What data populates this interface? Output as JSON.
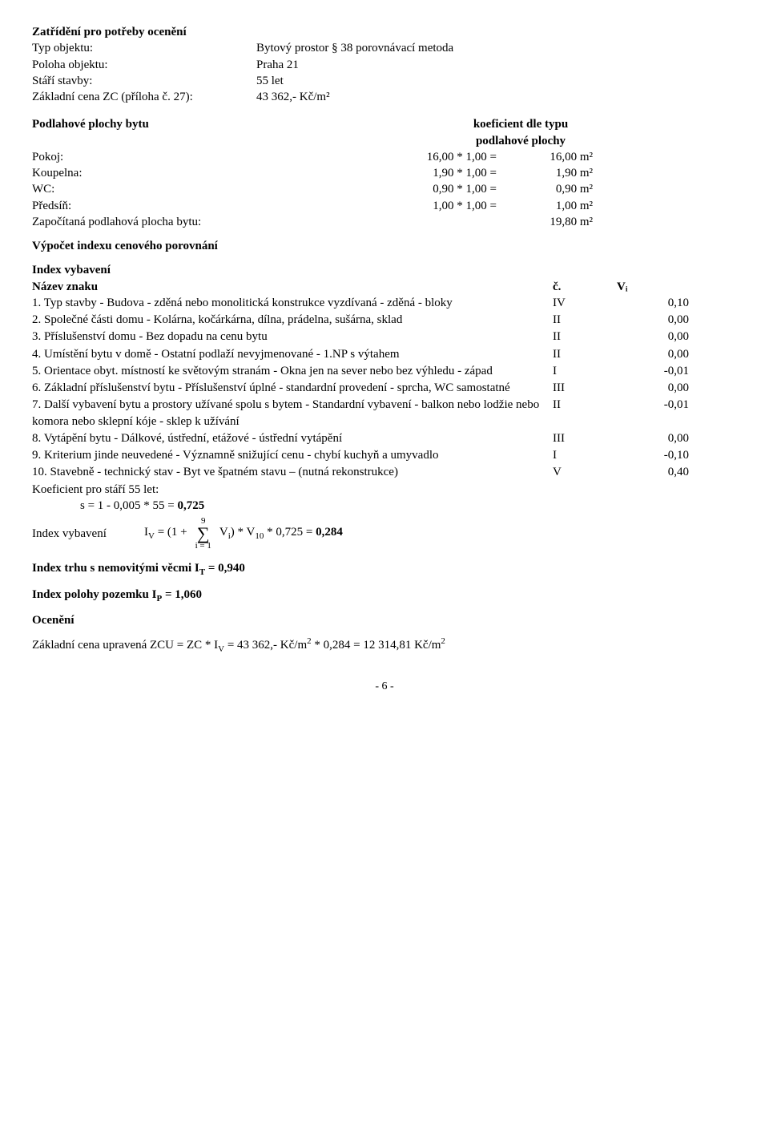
{
  "header": {
    "title": "Zatřídění pro potřeby ocenění",
    "rows": [
      {
        "label": "Typ objektu:",
        "value": "Bytový prostor § 38 porovnávací metoda"
      },
      {
        "label": "Poloha objektu:",
        "value": "Praha 21"
      },
      {
        "label": "Stáří stavby:",
        "value": "55 let"
      },
      {
        "label": "Základní cena ZC (příloha č. 27):",
        "value": "43 362,- Kč/m²"
      }
    ]
  },
  "floor": {
    "left_header": "Podlahové plochy bytu",
    "right_header": "koeficient dle typu\npodlahové plochy",
    "rows": [
      {
        "label": "Pokoj:",
        "calc": "16,00 *   1,00 =",
        "result": "16,00 m²"
      },
      {
        "label": "Koupelna:",
        "calc": "1,90 *   1,00 =",
        "result": "1,90 m²"
      },
      {
        "label": "WC:",
        "calc": "0,90 *   1,00 =",
        "result": "0,90 m²"
      },
      {
        "label": "Předsíň:",
        "calc": "1,00 *   1,00 =",
        "result": "1,00 m²"
      }
    ],
    "total": {
      "label": "Započítaná podlahová plocha bytu:",
      "result": "19,80 m²"
    }
  },
  "calc": {
    "section_title": "Výpočet indexu cenového porovnání",
    "table_title": "Index vybavení",
    "col_name": "Název znaku",
    "col_c": "č.",
    "col_v": "Vᵢ",
    "rows": [
      {
        "text": "1. Typ stavby - Budova - zděná nebo monolitická konstrukce vyzdívaná - zděná - bloky",
        "c": "IV",
        "v": "0,10"
      },
      {
        "text": "2. Společné části domu - Kolárna, kočárkárna, dílna, prádelna, sušárna, sklad",
        "c": "II",
        "v": "0,00"
      },
      {
        "text": "3. Příslušenství domu - Bez dopadu na cenu bytu",
        "c": "II",
        "v": "0,00"
      },
      {
        "text": "4. Umístění bytu v domě - Ostatní podlaží nevyjmenované - 1.NP s výtahem",
        "c": "II",
        "v": "0,00"
      },
      {
        "text": "5. Orientace obyt. místností ke světovým stranám - Okna jen na sever nebo bez výhledu -  západ",
        "c": "I",
        "v": "-0,01"
      },
      {
        "text": "6. Základní příslušenství bytu - Příslušenství úplné - standardní provedení - sprcha, WC samostatné",
        "c": "III",
        "v": "0,00"
      },
      {
        "text": "7. Další vybavení bytu a prostory užívané spolu s bytem - Standardní vybavení - balkon nebo lodžie nebo komora nebo sklepní kóje - sklep k užívání",
        "c": "II",
        "v": "-0,01"
      },
      {
        "text": "8. Vytápění bytu - Dálkové, ústřední, etážové - ústřední vytápění",
        "c": "III",
        "v": "0,00"
      },
      {
        "text": "9. Kriterium jinde neuvedené - Významně snižující cenu - chybí kuchyň a umyvadlo",
        "c": "I",
        "v": "-0,10"
      },
      {
        "text": "10. Stavebně - technický stav - Byt ve špatném stavu – (nutná rekonstrukce)",
        "c": "V",
        "v": "0,40"
      }
    ],
    "koef_label": "Koeficient pro stáří 55 let:",
    "koef_formula": "s = 1 - 0,005 * 55 = ",
    "koef_result": "0,725",
    "iv_label": "Index vybavení",
    "iv_left": "Iᵥ = (1 + ",
    "sum_top": "9",
    "sum_bottom": "i = 1",
    "iv_right": " Vᵢ) * V₁₀ * 0,725 = ",
    "iv_result": "0,284"
  },
  "results": {
    "it_line": "Index trhu s nemovitými věcmi Iᴛ = 0,940",
    "ip_line": "Index polohy pozemku Iᴘ = 1,060",
    "ocen_title": "Ocenění",
    "zcu_line": "Základní cena upravená ZCU = ZC * Iᵥ = 43 362,- Kč/m² * 0,284 = 12 314,81 Kč/m²"
  },
  "page": "- 6 -"
}
